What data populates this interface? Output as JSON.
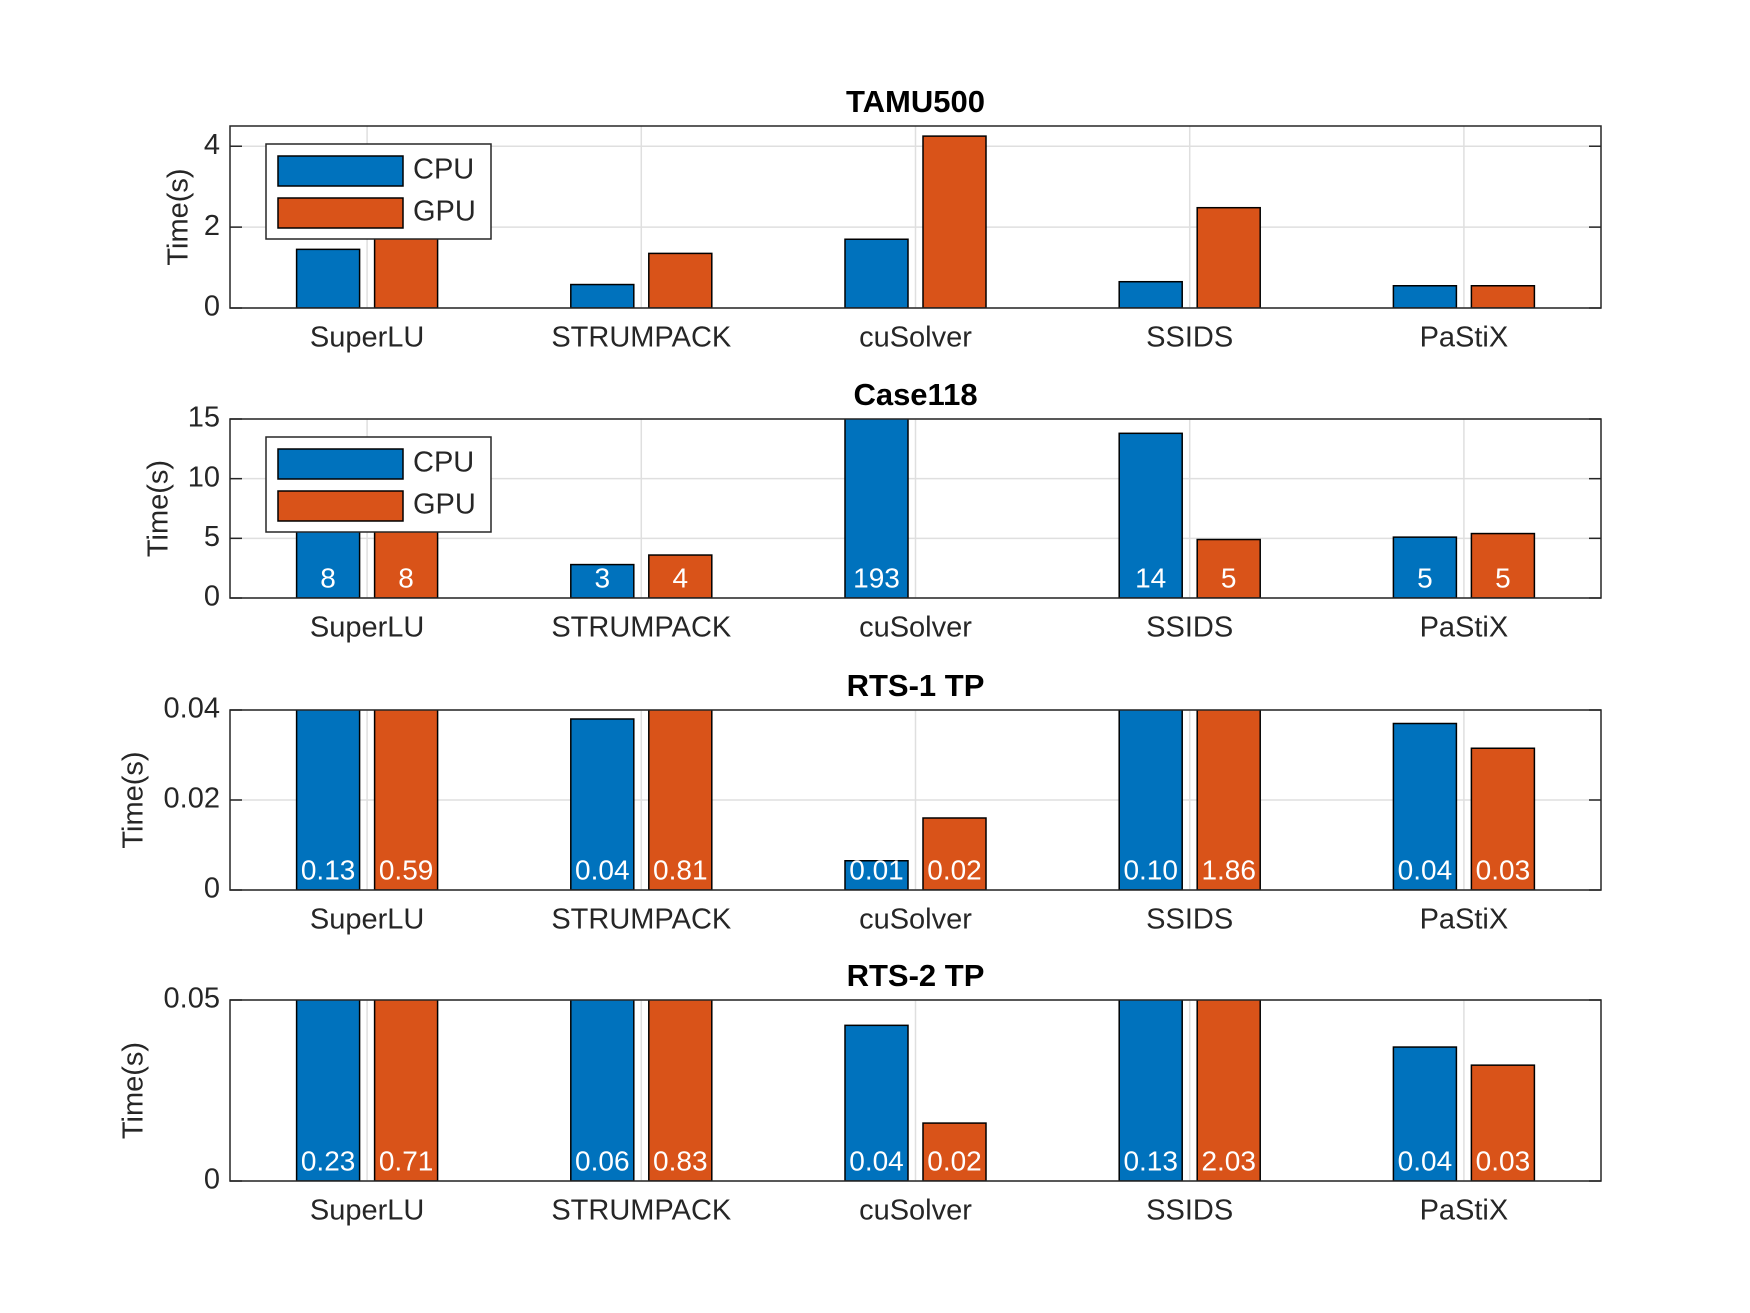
{
  "chart_data": [
    {
      "type": "bar",
      "title": "TAMU500",
      "ylabel": "Time(s)",
      "categories": [
        "SuperLU",
        "STRUMPACK",
        "cuSolver",
        "SSIDS",
        "PaStiX"
      ],
      "series": [
        {
          "name": "CPU",
          "color": "#0072bd",
          "values": [
            1.45,
            0.58,
            1.7,
            0.65,
            0.55
          ]
        },
        {
          "name": "GPU",
          "color": "#d95319",
          "values": [
            1.9,
            1.35,
            4.25,
            2.48,
            0.55
          ]
        }
      ],
      "ylim": [
        0,
        4.5
      ],
      "yticks": [
        0,
        2,
        4
      ],
      "grid": true,
      "legend": "northwest"
    },
    {
      "type": "bar",
      "title": "Case118",
      "ylabel": "Time(s)",
      "categories": [
        "SuperLU",
        "STRUMPACK",
        "cuSolver",
        "SSIDS",
        "PaStiX"
      ],
      "series": [
        {
          "name": "CPU",
          "color": "#0072bd",
          "values": [
            8,
            2.8,
            193,
            13.8,
            5.1
          ],
          "value_labels": [
            "8",
            "3",
            "193",
            "14",
            "5"
          ]
        },
        {
          "name": "GPU",
          "color": "#d95319",
          "values": [
            8,
            3.6,
            null,
            4.9,
            5.4
          ],
          "value_labels": [
            "8",
            "4",
            null,
            "5",
            "5"
          ]
        }
      ],
      "ylim": [
        0,
        15
      ],
      "yticks": [
        0,
        5,
        10,
        15
      ],
      "grid": true,
      "legend": "northwest"
    },
    {
      "type": "bar",
      "title": "RTS-1 TP",
      "ylabel": "Time(s)",
      "categories": [
        "SuperLU",
        "STRUMPACK",
        "cuSolver",
        "SSIDS",
        "PaStiX"
      ],
      "series": [
        {
          "color": "#0072bd",
          "values": [
            0.13,
            0.038,
            0.0065,
            0.1,
            0.037
          ],
          "value_labels": [
            "0.13",
            "0.04",
            "0.01",
            "0.10",
            "0.04"
          ]
        },
        {
          "color": "#d95319",
          "values": [
            0.59,
            0.81,
            0.016,
            1.86,
            0.0315
          ],
          "value_labels": [
            "0.59",
            "0.81",
            "0.02",
            "1.86",
            "0.03"
          ]
        }
      ],
      "ylim": [
        0,
        0.04
      ],
      "yticks": [
        0,
        0.02,
        0.04
      ],
      "grid": true
    },
    {
      "type": "bar",
      "title": "RTS-2 TP",
      "ylabel": "Time(s)",
      "categories": [
        "SuperLU",
        "STRUMPACK",
        "cuSolver",
        "SSIDS",
        "PaStiX"
      ],
      "series": [
        {
          "color": "#0072bd",
          "values": [
            0.23,
            0.06,
            0.043,
            0.13,
            0.037
          ],
          "value_labels": [
            "0.23",
            "0.06",
            "0.04",
            "0.13",
            "0.04"
          ]
        },
        {
          "color": "#d95319",
          "values": [
            0.71,
            0.83,
            0.016,
            2.03,
            0.032
          ],
          "value_labels": [
            "0.71",
            "0.83",
            "0.02",
            "2.03",
            "0.03"
          ]
        }
      ],
      "ylim": [
        0,
        0.05
      ],
      "yticks": [
        0,
        0.05
      ],
      "grid": true
    }
  ]
}
